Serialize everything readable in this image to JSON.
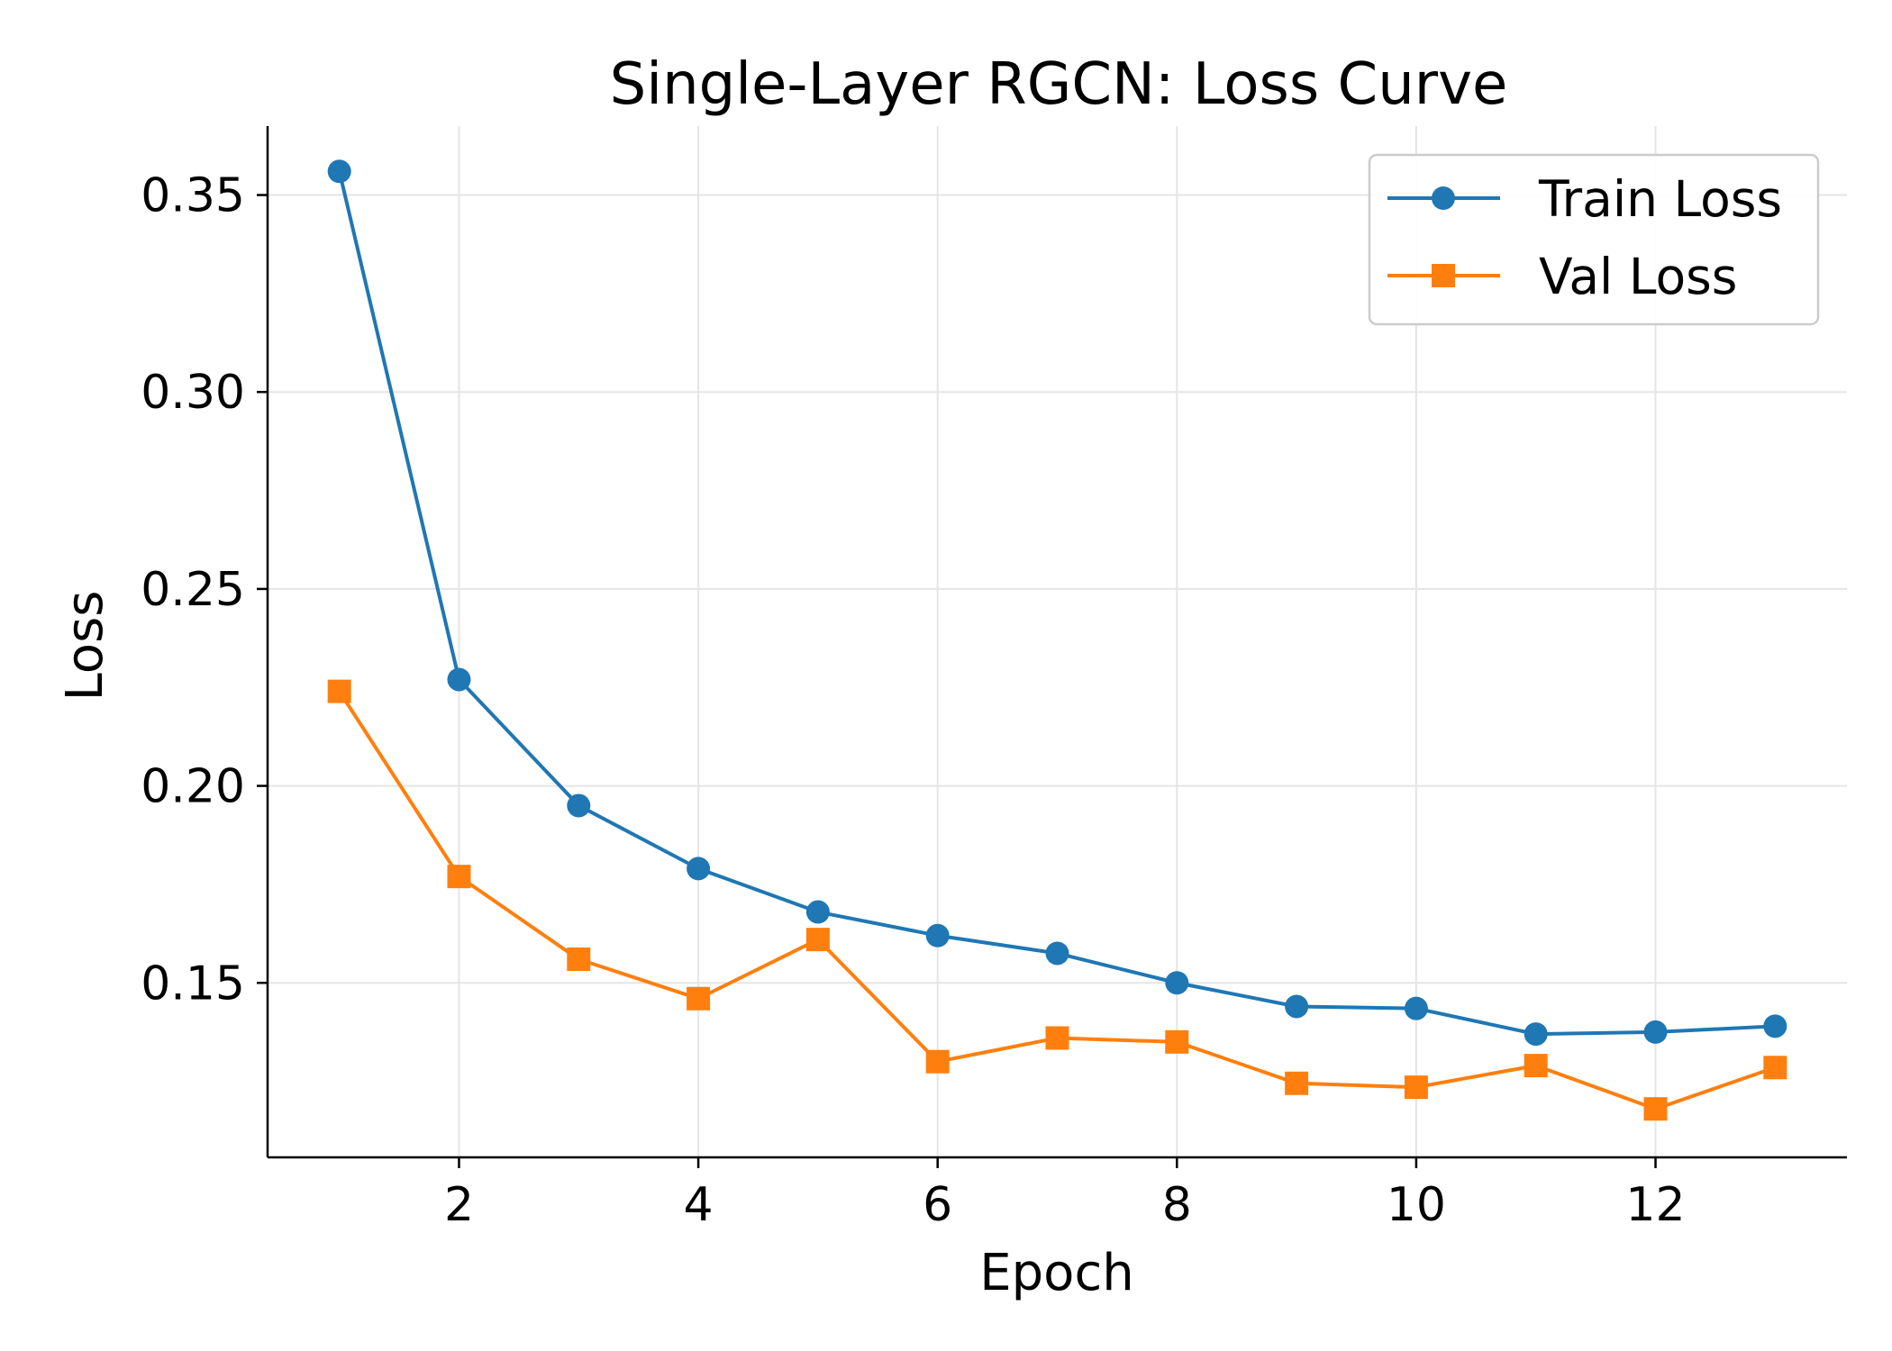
{
  "chart_data": {
    "type": "line",
    "title": "Single-Layer RGCN: Loss Curve",
    "xlabel": "Epoch",
    "ylabel": "Loss",
    "x": [
      1,
      2,
      3,
      4,
      5,
      6,
      7,
      8,
      9,
      10,
      11,
      12,
      13
    ],
    "xlim": [
      0.4,
      13.6
    ],
    "ylim": [
      0.1057,
      0.3675
    ],
    "xticks": [
      2,
      4,
      6,
      8,
      10,
      12
    ],
    "yticks": [
      0.15,
      0.2,
      0.25,
      0.3,
      0.35
    ],
    "ytick_labels": [
      "0.15",
      "0.20",
      "0.25",
      "0.30",
      "0.35"
    ],
    "grid": true,
    "legend_position": "top-right",
    "series": [
      {
        "name": "Train Loss",
        "color": "#1f77b4",
        "marker": "circle",
        "values": [
          0.356,
          0.227,
          0.195,
          0.179,
          0.168,
          0.162,
          0.1575,
          0.15,
          0.144,
          0.1435,
          0.137,
          0.1375,
          0.139
        ]
      },
      {
        "name": "Val Loss",
        "color": "#ff7f0e",
        "marker": "square",
        "values": [
          0.224,
          0.177,
          0.156,
          0.146,
          0.161,
          0.13,
          0.136,
          0.135,
          0.1245,
          0.1235,
          0.129,
          0.118,
          0.1285
        ]
      }
    ]
  }
}
